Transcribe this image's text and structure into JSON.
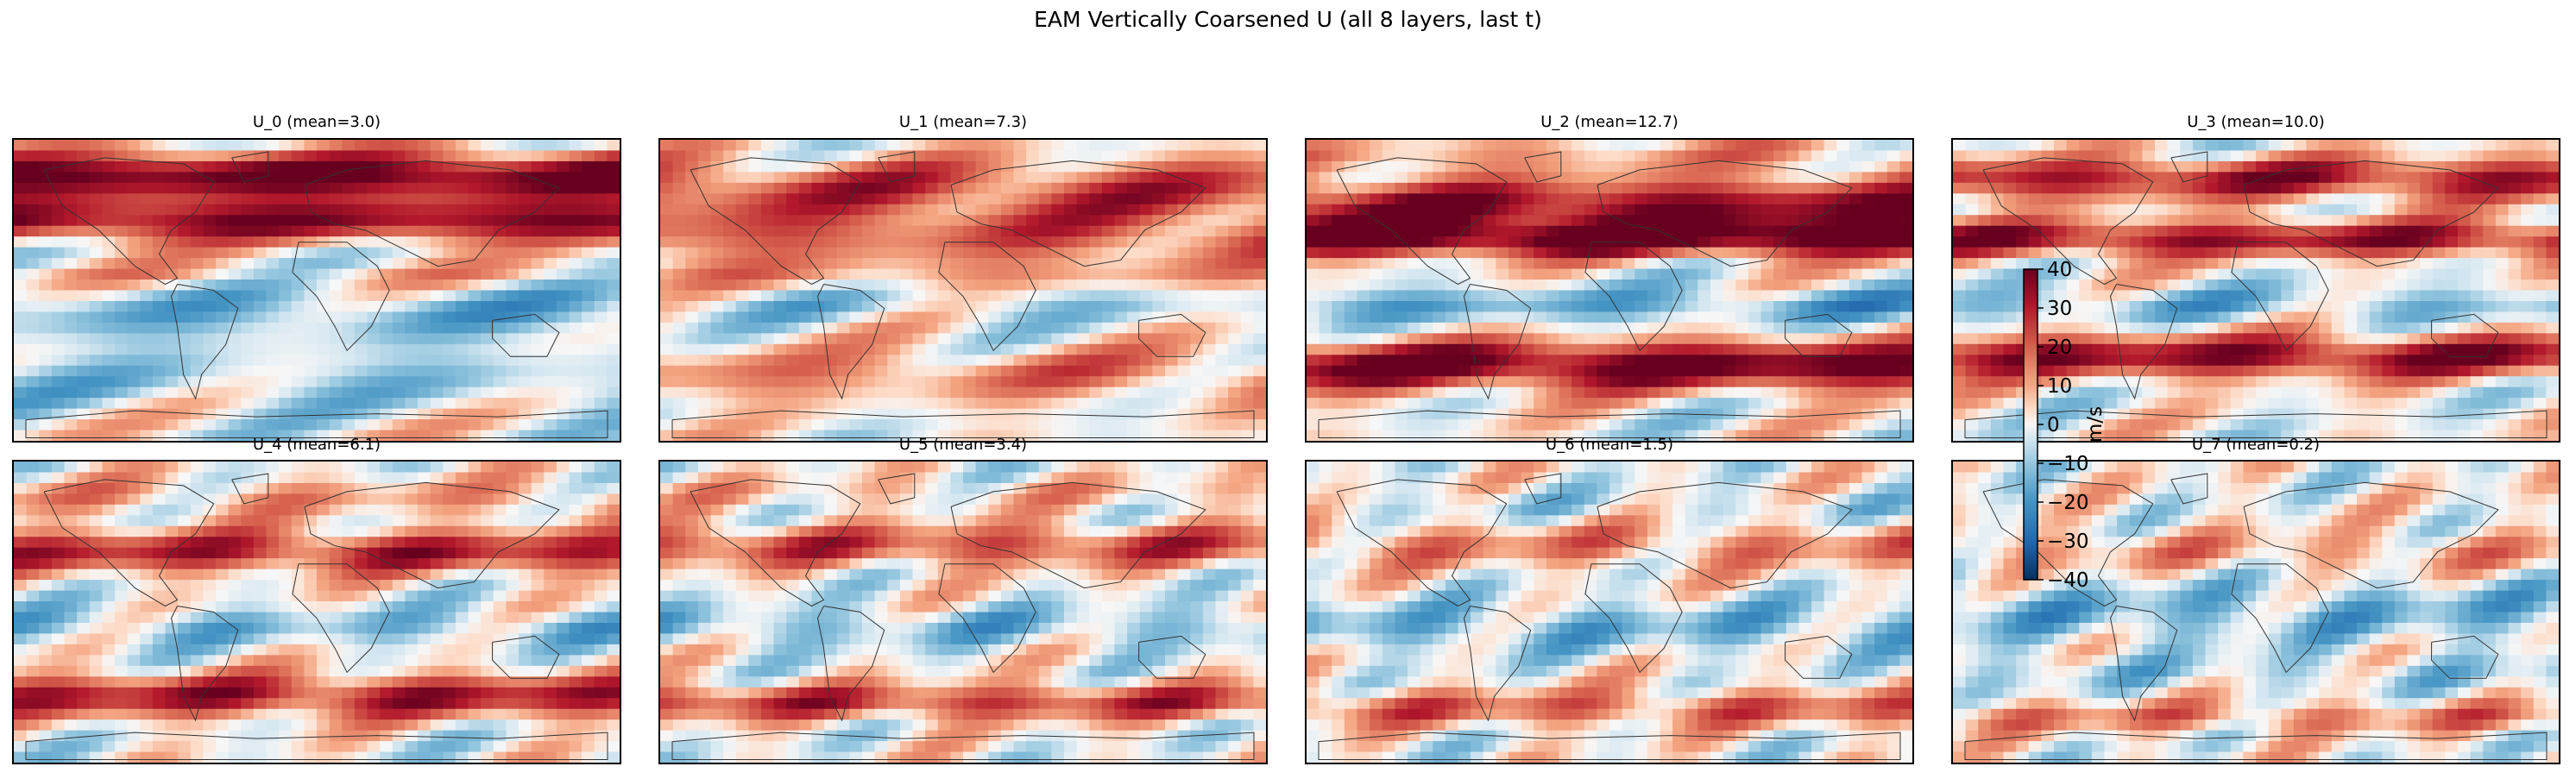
{
  "title": "EAM Vertically Coarsened U (all 8 layers, last t)",
  "chart_data": {
    "type": "heatmap",
    "title": "EAM Vertically Coarsened U (all 8 layers, last t)",
    "variable": "U",
    "colormap": "RdBu_r",
    "vmin": -40,
    "vmax": 40,
    "panels": [
      {
        "label": "U_0 (mean=3.0)",
        "mean": 3.0
      },
      {
        "label": "U_1 (mean=7.3)",
        "mean": 7.3
      },
      {
        "label": "U_2 (mean=12.7)",
        "mean": 12.7
      },
      {
        "label": "U_3 (mean=10.0)",
        "mean": 10.0
      },
      {
        "label": "U_4 (mean=6.1)",
        "mean": 6.1
      },
      {
        "label": "U_5 (mean=3.4)",
        "mean": 3.4
      },
      {
        "label": "U_6 (mean=1.5)",
        "mean": 1.5
      },
      {
        "label": "U_7 (mean=0.2)",
        "mean": 0.2
      }
    ],
    "colorbar": {
      "label": "m/s",
      "ticks": [
        40,
        30,
        20,
        10,
        0,
        -10,
        -20,
        -30,
        -40
      ],
      "tick_labels": [
        "40",
        "30",
        "20",
        "10",
        "0",
        "−10",
        "−20",
        "−30",
        "−40"
      ]
    }
  }
}
